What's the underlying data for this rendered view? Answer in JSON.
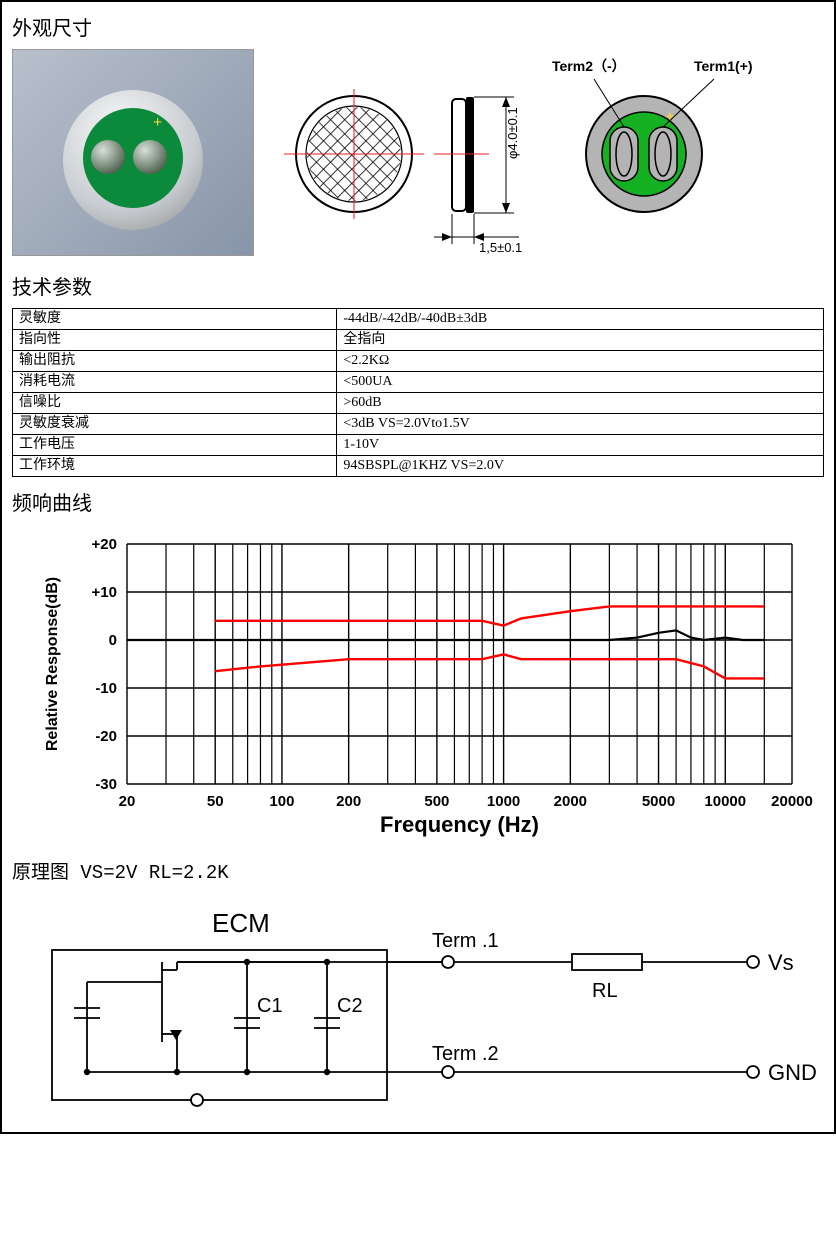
{
  "sections": {
    "dimensions": "外观尺寸",
    "tech": "技术参数",
    "freq": "频响曲线",
    "schem": "原理图 VS=2V  RL=2.2K"
  },
  "dims": {
    "term2": "Term2（-）",
    "term1": "Term1(+)",
    "diameter": "φ4.0±0.1",
    "thickness": "1,5±0.1"
  },
  "tech_rows": [
    {
      "k": "灵敏度",
      "v": "-44dB/-42dB/-40dB±3dB"
    },
    {
      "k": "指向性",
      "v": "全指向"
    },
    {
      "k": "输出阻抗",
      "v": "<2.2KΩ"
    },
    {
      "k": "消耗电流",
      "v": "<500UA"
    },
    {
      "k": "信噪比",
      "v": ">60dB"
    },
    {
      "k": "灵敏度衰减",
      "v": "<3dB        VS=2.0Vto1.5V"
    },
    {
      "k": "工作电压",
      "v": "1-10V"
    },
    {
      "k": "工作环境",
      "v": "94SBSPL@1KHZ VS=2.0V"
    }
  ],
  "freq_chart": {
    "xlabel": "Frequency (Hz)",
    "ylabel": "Relative Response(dB)",
    "ylim": [
      -30,
      20
    ],
    "yticks": [
      -30,
      -20,
      -10,
      0,
      10,
      20
    ],
    "ytick_labels": [
      "-30",
      "-20",
      "-10",
      "0",
      "+10",
      "+20"
    ],
    "xlim_log": [
      20,
      20000
    ],
    "xtick_labels": [
      "20",
      "50",
      "100",
      "200",
      "500",
      "1000",
      "2000",
      "5000",
      "10000",
      "20000"
    ],
    "xtick_values": [
      20,
      50,
      100,
      200,
      500,
      1000,
      2000,
      5000,
      10000,
      20000
    ],
    "grid_minor_x": [
      30,
      40,
      60,
      70,
      80,
      90,
      300,
      400,
      600,
      700,
      800,
      900,
      3000,
      4000,
      6000,
      7000,
      8000,
      9000,
      15000
    ],
    "line_color": "#000000",
    "tol_color": "#ff0000",
    "grid_color": "#000000",
    "bg": "#ffffff",
    "response": [
      {
        "f": 20,
        "db": 0
      },
      {
        "f": 50,
        "db": 0
      },
      {
        "f": 100,
        "db": 0
      },
      {
        "f": 500,
        "db": 0
      },
      {
        "f": 1000,
        "db": 0
      },
      {
        "f": 2000,
        "db": 0
      },
      {
        "f": 3000,
        "db": 0
      },
      {
        "f": 4000,
        "db": 0.5
      },
      {
        "f": 5000,
        "db": 1.5
      },
      {
        "f": 6000,
        "db": 2
      },
      {
        "f": 7000,
        "db": 0.5
      },
      {
        "f": 8000,
        "db": 0
      },
      {
        "f": 10000,
        "db": 0.5
      },
      {
        "f": 12000,
        "db": 0
      },
      {
        "f": 15000,
        "db": 0
      }
    ],
    "tol_upper": [
      {
        "f": 50,
        "db": 4
      },
      {
        "f": 800,
        "db": 4
      },
      {
        "f": 1000,
        "db": 3
      },
      {
        "f": 1200,
        "db": 4.5
      },
      {
        "f": 2000,
        "db": 6
      },
      {
        "f": 3000,
        "db": 7
      },
      {
        "f": 15000,
        "db": 7
      }
    ],
    "tol_lower": [
      {
        "f": 50,
        "db": -6.5
      },
      {
        "f": 80,
        "db": -5.5
      },
      {
        "f": 200,
        "db": -4
      },
      {
        "f": 800,
        "db": -4
      },
      {
        "f": 1000,
        "db": -3
      },
      {
        "f": 1200,
        "db": -4
      },
      {
        "f": 6000,
        "db": -4
      },
      {
        "f": 8000,
        "db": -5.5
      },
      {
        "f": 10000,
        "db": -8
      },
      {
        "f": 15000,
        "db": -8
      }
    ]
  },
  "schem": {
    "block": "ECM",
    "c1": "C1",
    "c2": "C2",
    "t1": "Term .1",
    "t2": "Term .2",
    "rl": "RL",
    "vs": "Vs",
    "gnd": "GND"
  },
  "colors": {
    "red": "#ee1c23",
    "green": "#16b023",
    "grey": "#b4b4b4",
    "frame": "#000000"
  }
}
